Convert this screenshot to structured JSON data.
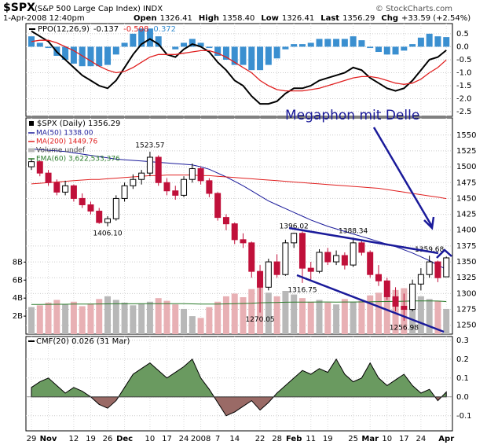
{
  "header": {
    "symbol": "$SPX",
    "name": "(S&P 500 Large Cap Index) INDX",
    "source": "© StockCharts.com",
    "date": "1-Apr-2008 12:40pm",
    "quote": [
      {
        "label": "Open",
        "value": "1326.41"
      },
      {
        "label": "High",
        "value": "1358.40"
      },
      {
        "label": "Low",
        "value": "1326.41"
      },
      {
        "label": "Last",
        "value": "1356.29"
      },
      {
        "label": "Chg",
        "value": "+33.59 (+2.54%)"
      }
    ]
  },
  "annotation": "Megaphon mit Delle",
  "chart_data": [
    {
      "type": "line",
      "title": "PPO(12,26,9)",
      "ylim": [
        -2.68,
        0.89
      ],
      "yticks": [
        0.5,
        {
          "value": 0,
          "label": "0.0"
        },
        -0.5,
        {
          "value": -1,
          "label": "-1.0"
        },
        -1.5,
        {
          "value": -2,
          "label": "-2.0"
        },
        -2.5
      ],
      "series": [
        {
          "name": "-0.137",
          "color": "#000000",
          "values": [
            0.6,
            0.4,
            0.2,
            -0.2,
            -0.5,
            -0.8,
            -1.1,
            -1.3,
            -1.5,
            -1.6,
            -1.3,
            -0.8,
            -0.3,
            0.1,
            0.3,
            0.1,
            -0.3,
            -0.4,
            -0.1,
            0.1,
            0.0,
            -0.2,
            -0.6,
            -0.9,
            -1.3,
            -1.5,
            -1.9,
            -2.2,
            -2.2,
            -2.1,
            -1.8,
            -1.6,
            -1.6,
            -1.5,
            -1.3,
            -1.2,
            -1.1,
            -1.0,
            -0.8,
            -0.9,
            -1.2,
            -1.4,
            -1.6,
            -1.7,
            -1.6,
            -1.3,
            -0.9,
            -0.5,
            -0.4,
            -0.137
          ]
        },
        {
          "name": "-0.508",
          "color": "#e02020",
          "values": [
            0.2,
            0.25,
            0.25,
            0.15,
            0.0,
            -0.15,
            -0.35,
            -0.55,
            -0.75,
            -0.9,
            -1.0,
            -0.95,
            -0.8,
            -0.6,
            -0.4,
            -0.3,
            -0.3,
            -0.3,
            -0.25,
            -0.2,
            -0.15,
            -0.15,
            -0.25,
            -0.4,
            -0.6,
            -0.8,
            -1.0,
            -1.3,
            -1.5,
            -1.65,
            -1.7,
            -1.7,
            -1.7,
            -1.65,
            -1.6,
            -1.5,
            -1.4,
            -1.3,
            -1.2,
            -1.15,
            -1.15,
            -1.2,
            -1.3,
            -1.4,
            -1.45,
            -1.4,
            -1.25,
            -1.0,
            -0.8,
            -0.508
          ]
        },
        {
          "name": "0.372",
          "type": "bar",
          "color": "#3a8fd0",
          "values": [
            0.4,
            0.15,
            -0.05,
            -0.35,
            -0.5,
            -0.65,
            -0.75,
            -0.75,
            -0.75,
            -0.7,
            -0.3,
            0.15,
            0.5,
            0.7,
            0.7,
            0.4,
            0.0,
            -0.1,
            0.15,
            0.3,
            0.15,
            -0.05,
            -0.35,
            -0.5,
            -0.7,
            -0.7,
            -0.9,
            -0.9,
            -0.7,
            -0.45,
            -0.1,
            0.1,
            0.1,
            0.15,
            0.3,
            0.3,
            0.3,
            0.3,
            0.4,
            0.25,
            -0.05,
            -0.2,
            -0.3,
            -0.3,
            -0.15,
            0.1,
            0.35,
            0.5,
            0.4,
            0.372
          ]
        }
      ]
    },
    {
      "type": "candlestick",
      "title": "$SPX (Daily) 1356.29",
      "ylim": [
        1236,
        1577
      ],
      "yticks": [
        1250,
        1275,
        1300,
        1325,
        1350,
        1375,
        1400,
        1425,
        1450,
        1475,
        1500,
        1525,
        1550
      ],
      "open": [
        1500,
        1508,
        1490,
        1475,
        1460,
        1470,
        1450,
        1440,
        1430,
        1412,
        1418,
        1450,
        1470,
        1480,
        1490,
        1515,
        1475,
        1462,
        1455,
        1480,
        1497,
        1478,
        1458,
        1420,
        1410,
        1385,
        1380,
        1335,
        1310,
        1350,
        1330,
        1380,
        1395,
        1340,
        1335,
        1365,
        1350,
        1360,
        1345,
        1380,
        1365,
        1330,
        1320,
        1295,
        1280,
        1275,
        1315,
        1330,
        1350,
        1326.41
      ],
      "high": [
        1512,
        1510,
        1495,
        1480,
        1478,
        1472,
        1458,
        1445,
        1435,
        1422,
        1455,
        1475,
        1488,
        1495,
        1523.57,
        1518,
        1482,
        1470,
        1485,
        1505,
        1500,
        1482,
        1460,
        1425,
        1412,
        1395,
        1382,
        1345,
        1355,
        1362,
        1385,
        1396.02,
        1398,
        1350,
        1370,
        1372,
        1368,
        1365,
        1388.34,
        1385,
        1368,
        1345,
        1325,
        1310,
        1300,
        1322,
        1340,
        1359.68,
        1352,
        1358.4
      ],
      "low": [
        1495,
        1485,
        1470,
        1455,
        1455,
        1445,
        1435,
        1425,
        1410,
        1406.1,
        1415,
        1445,
        1465,
        1472,
        1485,
        1470,
        1455,
        1448,
        1452,
        1475,
        1472,
        1452,
        1415,
        1400,
        1378,
        1372,
        1325,
        1270.05,
        1305,
        1325,
        1328,
        1372,
        1316.75,
        1322,
        1332,
        1345,
        1345,
        1338,
        1342,
        1360,
        1325,
        1312,
        1290,
        1272,
        1256.98,
        1272,
        1305,
        1325,
        1318,
        1326.41
      ],
      "close": [
        1508,
        1490,
        1475,
        1460,
        1470,
        1450,
        1440,
        1430,
        1412,
        1418,
        1450,
        1470,
        1480,
        1490,
        1515,
        1475,
        1462,
        1455,
        1480,
        1497,
        1478,
        1458,
        1420,
        1410,
        1385,
        1380,
        1335,
        1310,
        1350,
        1330,
        1380,
        1395,
        1340,
        1335,
        1365,
        1350,
        1360,
        1345,
        1380,
        1365,
        1330,
        1320,
        1295,
        1280,
        1275,
        1315,
        1330,
        1350,
        1325,
        1356.29
      ],
      "high_labels": [
        null,
        null,
        null,
        null,
        null,
        null,
        null,
        null,
        null,
        null,
        null,
        null,
        null,
        null,
        "1523.57",
        null,
        null,
        null,
        null,
        null,
        null,
        null,
        null,
        null,
        null,
        null,
        null,
        null,
        null,
        null,
        null,
        "1396.02",
        null,
        null,
        null,
        null,
        null,
        null,
        "1388.34",
        null,
        null,
        null,
        null,
        null,
        null,
        null,
        null,
        "1359.68",
        null,
        null
      ],
      "low_labels": [
        null,
        null,
        null,
        null,
        null,
        null,
        null,
        null,
        null,
        "1406.10",
        null,
        null,
        null,
        null,
        null,
        null,
        null,
        null,
        null,
        null,
        null,
        null,
        null,
        null,
        null,
        null,
        null,
        "1270.05",
        null,
        null,
        null,
        null,
        "1316.75",
        null,
        null,
        null,
        null,
        null,
        null,
        null,
        null,
        null,
        null,
        null,
        "1256.98",
        null,
        null,
        null,
        null,
        null
      ],
      "y2lim": [
        0,
        24
      ],
      "y2ticks": [
        {
          "value": 2,
          "label": "2B"
        },
        {
          "value": 4,
          "label": "4B"
        },
        {
          "value": 6,
          "label": "6B"
        },
        {
          "value": 8,
          "label": "8B"
        }
      ],
      "series": [
        {
          "name": "MA(50) 1338.00",
          "color": "#1a1a9a",
          "values": [
            1528,
            1527,
            1526,
            1525,
            1524,
            1522,
            1520,
            1518,
            1516,
            1514,
            1512,
            1511,
            1510,
            1509,
            1508,
            1507,
            1506,
            1505,
            1504,
            1503,
            1500,
            1496,
            1490,
            1484,
            1477,
            1470,
            1462,
            1454,
            1446,
            1440,
            1434,
            1428,
            1422,
            1416,
            1411,
            1406,
            1402,
            1398,
            1394,
            1390,
            1386,
            1382,
            1378,
            1374,
            1369,
            1364,
            1358,
            1352,
            1345,
            1338
          ]
        },
        {
          "name": "MA(200) 1449.76",
          "color": "#e02020",
          "values": [
            1473,
            1474,
            1475,
            1476,
            1477,
            1478,
            1479,
            1480,
            1480,
            1481,
            1482,
            1483,
            1484,
            1485,
            1486,
            1486,
            1487,
            1487,
            1487,
            1487,
            1486,
            1486,
            1485,
            1484,
            1483,
            1482,
            1481,
            1480,
            1479,
            1478,
            1477,
            1476,
            1475,
            1474,
            1473,
            1472,
            1471,
            1470,
            1469,
            1468,
            1467,
            1466,
            1464,
            1462,
            1460,
            1458,
            1456,
            1454,
            1452,
            1449.76
          ]
        },
        {
          "name": "Volume undef",
          "type": "bar",
          "axis": "y2",
          "color": "#b8b8b8",
          "values": [
            3.0,
            3.2,
            3.5,
            3.8,
            3.3,
            3.6,
            3.1,
            3.4,
            3.9,
            4.2,
            3.8,
            3.5,
            3.2,
            3.4,
            3.6,
            4.0,
            3.7,
            3.3,
            2.8,
            2.0,
            1.8,
            3.0,
            3.6,
            4.2,
            4.5,
            4.1,
            5.0,
            5.8,
            4.6,
            4.2,
            4.8,
            4.4,
            4.0,
            3.6,
            3.8,
            3.5,
            3.3,
            3.9,
            3.6,
            3.7,
            4.3,
            4.6,
            4.4,
            4.9,
            5.1,
            4.8,
            4.2,
            3.9,
            3.7,
            2.8
          ]
        },
        {
          "name": "EMA(60) 3,622,533,376",
          "axis": "y2",
          "color": "#2a7a2a",
          "values": [
            3.3,
            3.3,
            3.31,
            3.32,
            3.32,
            3.33,
            3.33,
            3.34,
            3.35,
            3.36,
            3.37,
            3.37,
            3.37,
            3.38,
            3.38,
            3.39,
            3.39,
            3.39,
            3.38,
            3.36,
            3.34,
            3.33,
            3.34,
            3.36,
            3.38,
            3.4,
            3.43,
            3.48,
            3.5,
            3.52,
            3.54,
            3.56,
            3.56,
            3.56,
            3.57,
            3.57,
            3.56,
            3.57,
            3.57,
            3.58,
            3.59,
            3.61,
            3.62,
            3.64,
            3.66,
            3.68,
            3.68,
            3.68,
            3.67,
            3.62
          ]
        }
      ]
    },
    {
      "type": "area",
      "title": "CMF(20) 0.026 (31 Mar)",
      "color": "#6a9a60",
      "negative_color": "#9a6a66",
      "ylim": [
        -0.18,
        0.32
      ],
      "yticks": [
        0.3,
        0.2,
        0.1,
        {
          "value": 0,
          "label": "0.0"
        },
        -0.1
      ],
      "categories": [
        "29",
        null,
        "Nov",
        null,
        null,
        "12",
        null,
        "19",
        null,
        "26",
        null,
        "Dec",
        null,
        null,
        "10",
        null,
        "17",
        null,
        "24",
        null,
        "2008",
        null,
        "7",
        null,
        "14",
        null,
        null,
        "22",
        null,
        "28",
        null,
        "Feb",
        null,
        "11",
        null,
        "19",
        null,
        null,
        "25",
        null,
        "Mar",
        null,
        "10",
        null,
        "17",
        null,
        "24",
        null,
        null,
        "Apr"
      ],
      "values": [
        0.05,
        0.08,
        0.1,
        0.06,
        0.02,
        0.05,
        0.03,
        0.0,
        -0.04,
        -0.06,
        -0.02,
        0.05,
        0.12,
        0.15,
        0.18,
        0.14,
        0.1,
        0.13,
        0.16,
        0.2,
        0.1,
        0.04,
        -0.03,
        -0.1,
        -0.08,
        -0.05,
        -0.02,
        -0.07,
        -0.03,
        0.02,
        0.06,
        0.1,
        0.14,
        0.12,
        0.15,
        0.13,
        0.2,
        0.12,
        0.08,
        0.1,
        0.18,
        0.1,
        0.06,
        0.09,
        0.12,
        0.06,
        0.02,
        0.04,
        -0.02,
        0.026
      ]
    }
  ]
}
